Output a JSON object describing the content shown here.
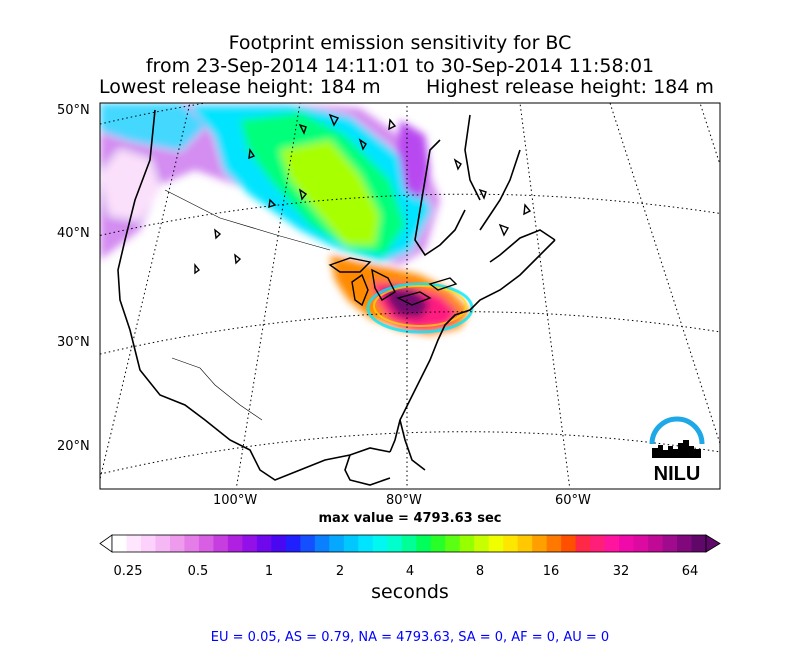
{
  "title": {
    "line1": "Footprint emission sensitivity for BC",
    "line2": "from 23-Sep-2014 14:11:01 to 30-Sep-2014 11:58:01",
    "lowest_release": "Lowest release height: 184 m",
    "highest_release": "Highest release height: 184 m"
  },
  "axes": {
    "lat_labels": [
      "50°N",
      "40°N",
      "30°N",
      "20°N"
    ],
    "lon_labels": [
      "100°W",
      "80°W",
      "60°W"
    ]
  },
  "max_value": "max value = 4793.63 sec",
  "colorbar": {
    "ticks": [
      "0.25",
      "0.5",
      "1",
      "2",
      "4",
      "8",
      "16",
      "32",
      "64"
    ],
    "label": "seconds",
    "colors": [
      "#ffffff",
      "#ffe6ff",
      "#fcd2fc",
      "#f5b8f5",
      "#ee9bee",
      "#e57de8",
      "#d85ee3",
      "#c63ee0",
      "#b020e0",
      "#9410e8",
      "#7008ee",
      "#4a08f2",
      "#2020ff",
      "#1450ff",
      "#0a80ff",
      "#06a8ff",
      "#00c8ff",
      "#00e4ff",
      "#00f8f0",
      "#00ffcc",
      "#00ff96",
      "#00ff5a",
      "#28ff28",
      "#5aff12",
      "#96ff00",
      "#c8ff00",
      "#f0ff00",
      "#ffe600",
      "#ffc800",
      "#ffa000",
      "#ff7800",
      "#ff5000",
      "#ff2846",
      "#ff1e78",
      "#ff14a0",
      "#f00aaa",
      "#dc0aa0",
      "#c00a96",
      "#a00a8c",
      "#80087c",
      "#60086a"
    ]
  },
  "stats": "EU = 0.05,  AS = 0.79,  NA = 4793.63,  SA = 0,  AF = 0,  AU = 0",
  "logo": {
    "text": "NILU",
    "arc_color": "#1fa8e6"
  }
}
